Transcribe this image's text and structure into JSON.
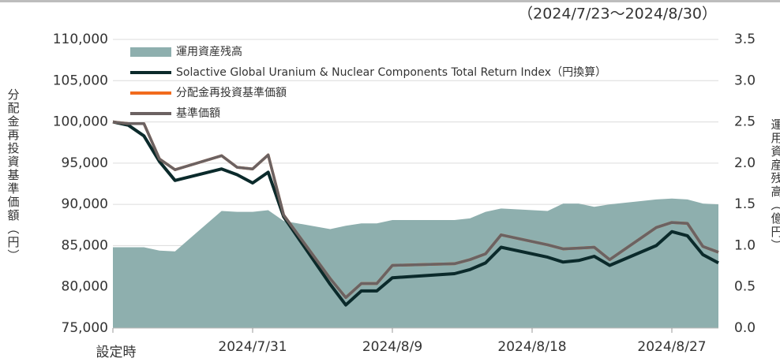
{
  "chart_data": {
    "type": "line",
    "subtitle": "（2024/7/23～2024/8/30）",
    "ylabel": "分配金再投資基準価額（円）",
    "y2label": "運用資産残高（億円）",
    "x": [
      "2024/7/22",
      "2024/7/23",
      "2024/7/24",
      "2024/7/25",
      "2024/7/26",
      "2024/7/29",
      "2024/7/30",
      "2024/7/31",
      "2024/8/1",
      "2024/8/2",
      "2024/8/5",
      "2024/8/6",
      "2024/8/7",
      "2024/8/8",
      "2024/8/9",
      "2024/8/13",
      "2024/8/14",
      "2024/8/15",
      "2024/8/16",
      "2024/8/19",
      "2024/8/20",
      "2024/8/21",
      "2024/8/22",
      "2024/8/23",
      "2024/8/26",
      "2024/8/27",
      "2024/8/28",
      "2024/8/29",
      "2024/8/30"
    ],
    "xlim": [
      "2024/7/22",
      "2024/8/30"
    ],
    "xticks": [
      {
        "value": "2024/7/22",
        "label": "設定時"
      },
      "2024/7/31",
      "2024/8/9",
      "2024/8/18",
      "2024/8/27"
    ],
    "ylim": [
      75000,
      110000
    ],
    "yticks": [
      {
        "value": 75000,
        "label": "75,000"
      },
      {
        "value": 80000,
        "label": "80,000"
      },
      {
        "value": 85000,
        "label": "85,000"
      },
      {
        "value": 90000,
        "label": "90,000"
      },
      {
        "value": 95000,
        "label": "95,000"
      },
      {
        "value": 100000,
        "label": "100,000"
      },
      {
        "value": 105000,
        "label": "105,000"
      },
      {
        "value": 110000,
        "label": "110,000"
      }
    ],
    "y2lim": [
      0,
      3.5
    ],
    "y2ticks": [
      {
        "value": 0,
        "label": "0.0"
      },
      0.5,
      {
        "value": 1,
        "label": "1.0"
      },
      1.5,
      {
        "value": 2,
        "label": "2.0"
      },
      2.5,
      {
        "value": 3,
        "label": "3.0"
      },
      3.5
    ],
    "grid": true,
    "legend": "upper left",
    "series": [
      {
        "name": "運用資産残高",
        "kind": "area",
        "axis": "y2",
        "color": "#8eafae",
        "values": [
          0.98,
          0.98,
          0.98,
          0.94,
          0.93,
          1.42,
          1.41,
          1.41,
          1.43,
          1.3,
          1.2,
          1.24,
          1.27,
          1.27,
          1.31,
          1.31,
          1.33,
          1.41,
          1.45,
          1.42,
          1.51,
          1.51,
          1.47,
          1.5,
          1.56,
          1.57,
          1.56,
          1.51,
          1.5
        ]
      },
      {
        "name": "Solactive Global Uranium & Nuclear Components Total Return Index（円換算）",
        "kind": "line",
        "color": "#0b2a2b",
        "values": [
          100000,
          99600,
          98300,
          95200,
          92900,
          94300,
          93600,
          92600,
          93900,
          88500,
          80300,
          77800,
          79500,
          79500,
          81100,
          81600,
          82100,
          82900,
          84800,
          83600,
          83000,
          83200,
          83700,
          82600,
          85000,
          86700,
          86200,
          83900,
          82900
        ]
      },
      {
        "name": "分配金再投資基準価額",
        "kind": "line",
        "color": "#f26b1d",
        "values": [
          100000,
          99800,
          99800,
          95500,
          94200,
          95900,
          94500,
          94300,
          96000,
          88700,
          81000,
          78700,
          80400,
          80400,
          82600,
          82800,
          83300,
          84000,
          86300,
          85100,
          84600,
          84700,
          84800,
          83300,
          87200,
          87800,
          87700,
          84900,
          84200
        ]
      },
      {
        "name": "基準価額",
        "kind": "line",
        "color": "#6b6262",
        "values": [
          100000,
          99800,
          99800,
          95500,
          94200,
          95900,
          94500,
          94300,
          96000,
          88700,
          81000,
          78700,
          80400,
          80400,
          82600,
          82800,
          83300,
          84000,
          86300,
          85100,
          84600,
          84700,
          84800,
          83300,
          87200,
          87800,
          87700,
          84900,
          84200
        ]
      }
    ]
  }
}
